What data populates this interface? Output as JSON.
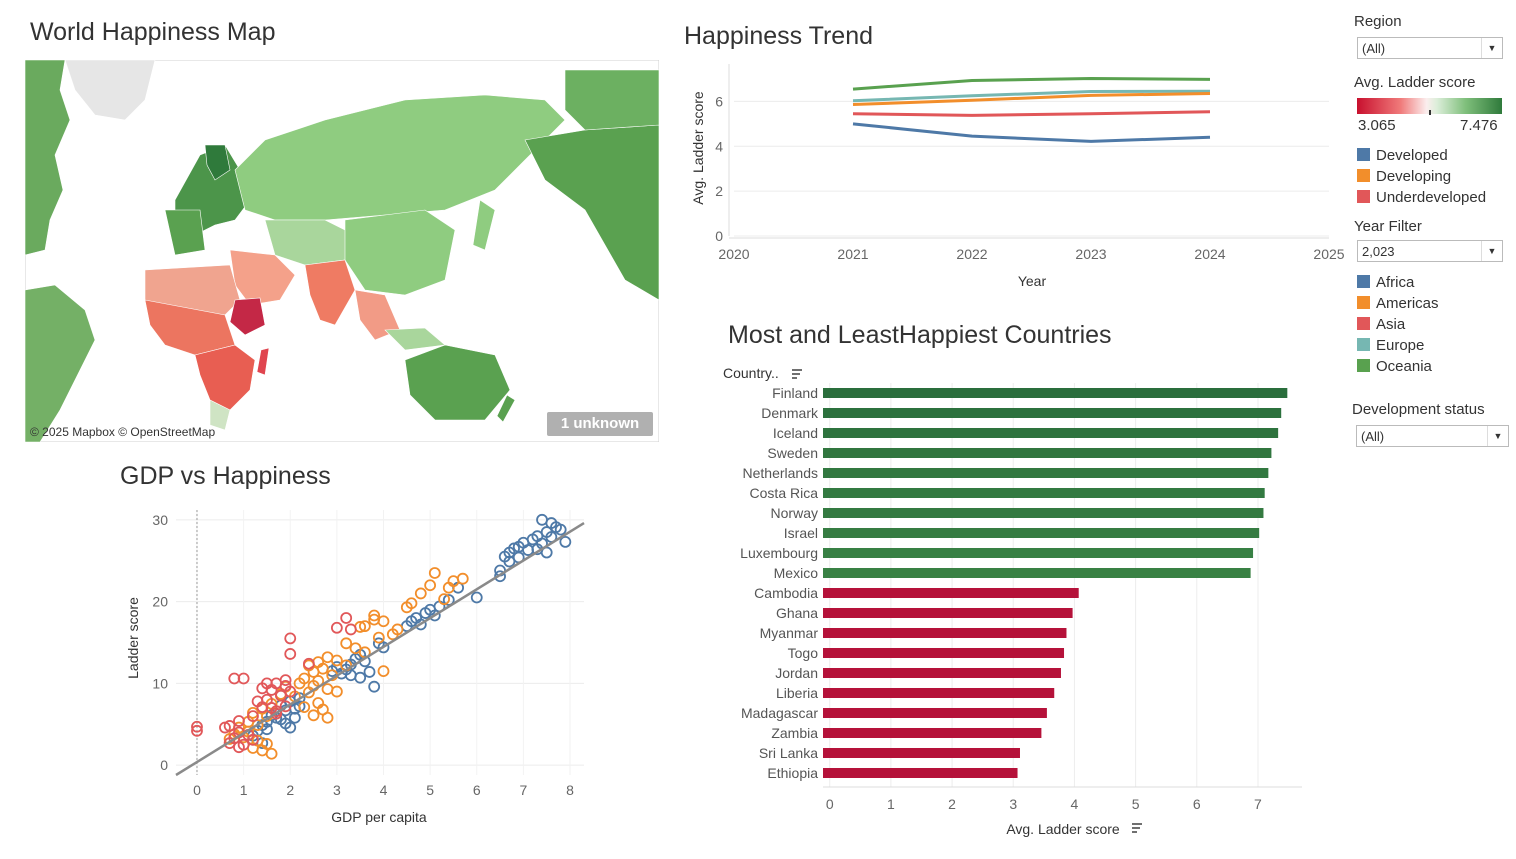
{
  "titles": {
    "map": "World Happiness Map",
    "trend": "Happiness Trend",
    "scatter": "GDP vs Happiness",
    "bars": "Most and LeastHappiest Countries"
  },
  "map": {
    "credit": "© 2025 Mapbox © OpenStreetMap",
    "unknown_badge": "1 unknown"
  },
  "filters": {
    "region_label": "Region",
    "region_value": "(All)",
    "color_label": "Avg. Ladder score",
    "color_min": "3.065",
    "color_max": "7.476",
    "year_label": "Year Filter",
    "year_value": "2,023",
    "dev_label": "Development status",
    "dev_value": "(All)"
  },
  "legends": {
    "development": [
      {
        "name": "Developed",
        "color": "#4e79a7"
      },
      {
        "name": "Developing",
        "color": "#f28e2b"
      },
      {
        "name": "Underdeveloped",
        "color": "#e15759"
      }
    ],
    "region": [
      {
        "name": "Africa",
        "color": "#4e79a7"
      },
      {
        "name": "Americas",
        "color": "#f28e2b"
      },
      {
        "name": "Asia",
        "color": "#e15759"
      },
      {
        "name": "Europe",
        "color": "#76b7b2"
      },
      {
        "name": "Oceania",
        "color": "#59a14f"
      }
    ]
  },
  "chart_data": [
    {
      "type": "line",
      "xlabel": "Year",
      "ylabel": "Avg. Ladder score",
      "x_ticks": [
        "2020",
        "2021",
        "2022",
        "2023",
        "2024",
        "2025"
      ],
      "y_ticks": [
        "0",
        "2",
        "4",
        "6"
      ],
      "xlim": [
        2020,
        2025
      ],
      "ylim": [
        0,
        7.4
      ],
      "x": [
        2021,
        2022,
        2023,
        2024
      ],
      "series": [
        {
          "color": "#59a14f",
          "values": [
            6.55,
            6.93,
            7.02,
            6.98
          ]
        },
        {
          "color": "#76b7b2",
          "values": [
            6.03,
            6.25,
            6.44,
            6.45
          ]
        },
        {
          "color": "#f28e2b",
          "values": [
            5.86,
            6.05,
            6.27,
            6.35
          ]
        },
        {
          "color": "#e15759",
          "values": [
            5.45,
            5.38,
            5.45,
            5.54
          ]
        },
        {
          "color": "#4e79a7",
          "values": [
            5.0,
            4.45,
            4.22,
            4.4
          ]
        }
      ]
    },
    {
      "type": "scatter",
      "xlabel": "GDP per capita",
      "ylabel": "Ladder score",
      "x_ticks": [
        "0",
        "1",
        "2",
        "3",
        "4",
        "5",
        "6",
        "7",
        "8"
      ],
      "y_ticks": [
        "0",
        "10",
        "20",
        "30"
      ],
      "xlim": [
        -0.45,
        8.3
      ],
      "ylim": [
        -1.2,
        31.2
      ],
      "trend_line": {
        "x": [
          -0.45,
          8.3
        ],
        "y": [
          -1.2,
          29.6
        ]
      },
      "series": [
        {
          "color": "#4e79a7",
          "points": [
            [
              7.4,
              30.0
            ],
            [
              7.6,
              29.6
            ],
            [
              7.7,
              29.1
            ],
            [
              7.5,
              28.5
            ],
            [
              7.3,
              28.0
            ],
            [
              7.8,
              28.8
            ],
            [
              7.2,
              27.6
            ],
            [
              7.6,
              27.9
            ],
            [
              7.4,
              27.1
            ],
            [
              7.9,
              27.3
            ],
            [
              7.0,
              27.2
            ],
            [
              6.9,
              26.7
            ],
            [
              7.1,
              26.3
            ],
            [
              6.8,
              26.5
            ],
            [
              6.7,
              26.0
            ],
            [
              7.3,
              26.4
            ],
            [
              7.5,
              26.0
            ],
            [
              6.6,
              25.5
            ],
            [
              6.9,
              25.4
            ],
            [
              6.7,
              24.9
            ],
            [
              6.5,
              23.8
            ],
            [
              6.5,
              23.1
            ],
            [
              6.0,
              20.5
            ],
            [
              5.6,
              21.7
            ],
            [
              5.4,
              20.2
            ],
            [
              5.2,
              19.4
            ],
            [
              5.0,
              19.0
            ],
            [
              4.9,
              18.6
            ],
            [
              5.1,
              18.3
            ],
            [
              4.7,
              18.0
            ],
            [
              4.6,
              17.6
            ],
            [
              4.8,
              17.2
            ],
            [
              4.5,
              17.0
            ],
            [
              3.9,
              14.9
            ],
            [
              4.0,
              14.4
            ],
            [
              3.5,
              13.5
            ],
            [
              3.4,
              13.0
            ],
            [
              3.6,
              12.7
            ],
            [
              3.3,
              12.3
            ],
            [
              3.2,
              11.7
            ],
            [
              3.7,
              11.4
            ],
            [
              3.1,
              11.2
            ],
            [
              3.0,
              12.0
            ],
            [
              3.5,
              10.7
            ],
            [
              3.8,
              9.6
            ],
            [
              2.9,
              11.5
            ],
            [
              3.3,
              11.0
            ],
            [
              2.2,
              8.2
            ],
            [
              2.0,
              7.8
            ],
            [
              1.8,
              7.3
            ],
            [
              2.1,
              6.9
            ],
            [
              1.9,
              6.7
            ],
            [
              2.2,
              7.2
            ],
            [
              1.6,
              6.1
            ],
            [
              1.7,
              5.8
            ],
            [
              1.5,
              5.3
            ],
            [
              1.8,
              5.6
            ],
            [
              1.4,
              4.9
            ],
            [
              1.9,
              5.1
            ],
            [
              2.1,
              5.8
            ],
            [
              1.3,
              4.2
            ],
            [
              1.5,
              4.4
            ],
            [
              1.2,
              3.6
            ],
            [
              1.4,
              2.7
            ],
            [
              2.0,
              4.6
            ]
          ]
        },
        {
          "color": "#f28e2b",
          "points": [
            [
              5.1,
              23.5
            ],
            [
              5.5,
              22.5
            ],
            [
              5.7,
              22.8
            ],
            [
              5.0,
              22.0
            ],
            [
              5.4,
              21.7
            ],
            [
              4.8,
              21.0
            ],
            [
              5.3,
              20.3
            ],
            [
              4.5,
              19.3
            ],
            [
              4.6,
              19.8
            ],
            [
              3.8,
              18.3
            ],
            [
              3.8,
              17.8
            ],
            [
              4.0,
              17.6
            ],
            [
              3.6,
              17.0
            ],
            [
              3.5,
              16.9
            ],
            [
              4.3,
              16.6
            ],
            [
              4.2,
              16.0
            ],
            [
              3.9,
              15.6
            ],
            [
              3.2,
              14.9
            ],
            [
              3.4,
              14.3
            ],
            [
              3.6,
              13.8
            ],
            [
              2.8,
              13.2
            ],
            [
              3.0,
              12.8
            ],
            [
              2.6,
              12.6
            ],
            [
              2.4,
              12.2
            ],
            [
              2.7,
              11.8
            ],
            [
              2.5,
              11.4
            ],
            [
              2.9,
              11.0
            ],
            [
              2.3,
              10.6
            ],
            [
              2.6,
              10.3
            ],
            [
              2.2,
              10.0
            ],
            [
              2.5,
              9.7
            ],
            [
              2.8,
              9.3
            ],
            [
              2.4,
              8.9
            ],
            [
              2.1,
              8.4
            ],
            [
              2.6,
              7.6
            ],
            [
              2.3,
              7.1
            ],
            [
              2.7,
              6.8
            ],
            [
              2.8,
              5.8
            ],
            [
              2.5,
              6.1
            ],
            [
              3.0,
              9.0
            ],
            [
              1.8,
              8.7
            ],
            [
              1.6,
              7.5
            ],
            [
              1.4,
              6.9
            ],
            [
              1.2,
              6.4
            ],
            [
              1.5,
              6.0
            ],
            [
              1.1,
              5.3
            ],
            [
              1.3,
              4.9
            ],
            [
              0.9,
              4.6
            ],
            [
              1.1,
              4.1
            ],
            [
              0.8,
              3.8
            ],
            [
              1.0,
              3.4
            ],
            [
              1.3,
              3.0
            ],
            [
              1.5,
              2.6
            ],
            [
              1.6,
              1.4
            ],
            [
              0.7,
              3.2
            ],
            [
              1.2,
              2.1
            ],
            [
              1.4,
              1.8
            ],
            [
              3.2,
              12.2
            ],
            [
              4.0,
              11.5
            ],
            [
              1.9,
              9.6
            ]
          ]
        },
        {
          "color": "#e15759",
          "points": [
            [
              3.2,
              18.0
            ],
            [
              3.0,
              16.8
            ],
            [
              3.3,
              16.6
            ],
            [
              2.0,
              15.5
            ],
            [
              2.0,
              13.6
            ],
            [
              2.4,
              12.4
            ],
            [
              1.9,
              10.4
            ],
            [
              1.7,
              10.0
            ],
            [
              1.5,
              10.0
            ],
            [
              1.4,
              9.4
            ],
            [
              1.6,
              9.2
            ],
            [
              1.9,
              9.7
            ],
            [
              2.0,
              9.0
            ],
            [
              1.8,
              8.5
            ],
            [
              1.5,
              8.0
            ],
            [
              1.3,
              7.8
            ],
            [
              1.4,
              7.1
            ],
            [
              1.6,
              7.0
            ],
            [
              1.7,
              6.3
            ],
            [
              1.2,
              6.0
            ],
            [
              1.0,
              10.6
            ],
            [
              0.8,
              10.6
            ],
            [
              0.9,
              5.4
            ],
            [
              0.7,
              4.8
            ],
            [
              0.6,
              4.6
            ],
            [
              0.9,
              4.0
            ],
            [
              1.1,
              3.7
            ],
            [
              0.8,
              3.3
            ],
            [
              0.7,
              2.7
            ],
            [
              0.9,
              2.2
            ],
            [
              1.0,
              2.5
            ],
            [
              1.2,
              3.1
            ],
            [
              0.0,
              4.7
            ],
            [
              0.0,
              4.2
            ],
            [
              1.7,
              6.6
            ],
            [
              1.9,
              7.2
            ]
          ]
        }
      ]
    },
    {
      "type": "bar",
      "orientation": "horizontal",
      "axis_header": "Country..",
      "xlabel": "Avg. Ladder score",
      "x_ticks": [
        "0",
        "1",
        "2",
        "3",
        "4",
        "5",
        "6",
        "7"
      ],
      "xlim": [
        -0.11,
        7.72
      ],
      "categories": [
        "Finland",
        "Denmark",
        "Iceland",
        "Sweden",
        "Netherlands",
        "Costa Rica",
        "Norway",
        "Israel",
        "Luxembourg",
        "Mexico",
        "Cambodia",
        "Ghana",
        "Myanmar",
        "Togo",
        "Jordan",
        "Liberia",
        "Madagascar",
        "Zambia",
        "Sri Lanka",
        "Ethiopia"
      ],
      "values": [
        7.48,
        7.38,
        7.33,
        7.22,
        7.17,
        7.11,
        7.09,
        7.02,
        6.92,
        6.88,
        4.07,
        3.97,
        3.87,
        3.83,
        3.78,
        3.67,
        3.55,
        3.46,
        3.11,
        3.07
      ]
    }
  ]
}
